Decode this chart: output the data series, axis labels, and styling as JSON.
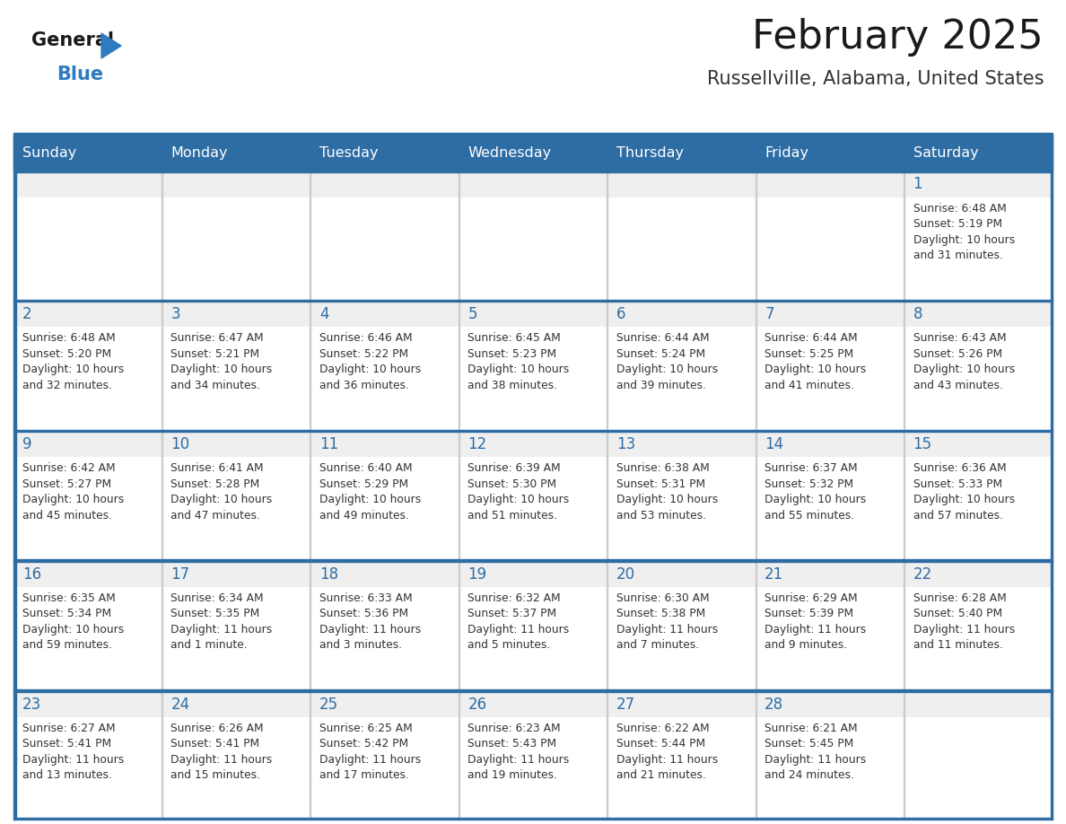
{
  "title": "February 2025",
  "subtitle": "Russellville, Alabama, United States",
  "header_bg": "#2E6DA4",
  "header_text_color": "#FFFFFF",
  "day_names": [
    "Sunday",
    "Monday",
    "Tuesday",
    "Wednesday",
    "Thursday",
    "Friday",
    "Saturday"
  ],
  "cell_bg_gray": "#EFEFEF",
  "cell_bg_white": "#FFFFFF",
  "grid_line_color": "#2E6DA4",
  "date_color": "#2E6DA4",
  "info_color": "#333333",
  "title_color": "#1a1a1a",
  "subtitle_color": "#333333",
  "logo_general_color": "#1a1a1a",
  "logo_blue_color": "#2E7BBF",
  "calendar": [
    [
      null,
      null,
      null,
      null,
      null,
      null,
      {
        "day": 1,
        "sunrise": "6:48 AM",
        "sunset": "5:19 PM",
        "daylight": "10 hours",
        "daylight2": "and 31 minutes."
      }
    ],
    [
      {
        "day": 2,
        "sunrise": "6:48 AM",
        "sunset": "5:20 PM",
        "daylight": "10 hours",
        "daylight2": "and 32 minutes."
      },
      {
        "day": 3,
        "sunrise": "6:47 AM",
        "sunset": "5:21 PM",
        "daylight": "10 hours",
        "daylight2": "and 34 minutes."
      },
      {
        "day": 4,
        "sunrise": "6:46 AM",
        "sunset": "5:22 PM",
        "daylight": "10 hours",
        "daylight2": "and 36 minutes."
      },
      {
        "day": 5,
        "sunrise": "6:45 AM",
        "sunset": "5:23 PM",
        "daylight": "10 hours",
        "daylight2": "and 38 minutes."
      },
      {
        "day": 6,
        "sunrise": "6:44 AM",
        "sunset": "5:24 PM",
        "daylight": "10 hours",
        "daylight2": "and 39 minutes."
      },
      {
        "day": 7,
        "sunrise": "6:44 AM",
        "sunset": "5:25 PM",
        "daylight": "10 hours",
        "daylight2": "and 41 minutes."
      },
      {
        "day": 8,
        "sunrise": "6:43 AM",
        "sunset": "5:26 PM",
        "daylight": "10 hours",
        "daylight2": "and 43 minutes."
      }
    ],
    [
      {
        "day": 9,
        "sunrise": "6:42 AM",
        "sunset": "5:27 PM",
        "daylight": "10 hours",
        "daylight2": "and 45 minutes."
      },
      {
        "day": 10,
        "sunrise": "6:41 AM",
        "sunset": "5:28 PM",
        "daylight": "10 hours",
        "daylight2": "and 47 minutes."
      },
      {
        "day": 11,
        "sunrise": "6:40 AM",
        "sunset": "5:29 PM",
        "daylight": "10 hours",
        "daylight2": "and 49 minutes."
      },
      {
        "day": 12,
        "sunrise": "6:39 AM",
        "sunset": "5:30 PM",
        "daylight": "10 hours",
        "daylight2": "and 51 minutes."
      },
      {
        "day": 13,
        "sunrise": "6:38 AM",
        "sunset": "5:31 PM",
        "daylight": "10 hours",
        "daylight2": "and 53 minutes."
      },
      {
        "day": 14,
        "sunrise": "6:37 AM",
        "sunset": "5:32 PM",
        "daylight": "10 hours",
        "daylight2": "and 55 minutes."
      },
      {
        "day": 15,
        "sunrise": "6:36 AM",
        "sunset": "5:33 PM",
        "daylight": "10 hours",
        "daylight2": "and 57 minutes."
      }
    ],
    [
      {
        "day": 16,
        "sunrise": "6:35 AM",
        "sunset": "5:34 PM",
        "daylight": "10 hours",
        "daylight2": "and 59 minutes."
      },
      {
        "day": 17,
        "sunrise": "6:34 AM",
        "sunset": "5:35 PM",
        "daylight": "11 hours",
        "daylight2": "and 1 minute."
      },
      {
        "day": 18,
        "sunrise": "6:33 AM",
        "sunset": "5:36 PM",
        "daylight": "11 hours",
        "daylight2": "and 3 minutes."
      },
      {
        "day": 19,
        "sunrise": "6:32 AM",
        "sunset": "5:37 PM",
        "daylight": "11 hours",
        "daylight2": "and 5 minutes."
      },
      {
        "day": 20,
        "sunrise": "6:30 AM",
        "sunset": "5:38 PM",
        "daylight": "11 hours",
        "daylight2": "and 7 minutes."
      },
      {
        "day": 21,
        "sunrise": "6:29 AM",
        "sunset": "5:39 PM",
        "daylight": "11 hours",
        "daylight2": "and 9 minutes."
      },
      {
        "day": 22,
        "sunrise": "6:28 AM",
        "sunset": "5:40 PM",
        "daylight": "11 hours",
        "daylight2": "and 11 minutes."
      }
    ],
    [
      {
        "day": 23,
        "sunrise": "6:27 AM",
        "sunset": "5:41 PM",
        "daylight": "11 hours",
        "daylight2": "and 13 minutes."
      },
      {
        "day": 24,
        "sunrise": "6:26 AM",
        "sunset": "5:41 PM",
        "daylight": "11 hours",
        "daylight2": "and 15 minutes."
      },
      {
        "day": 25,
        "sunrise": "6:25 AM",
        "sunset": "5:42 PM",
        "daylight": "11 hours",
        "daylight2": "and 17 minutes."
      },
      {
        "day": 26,
        "sunrise": "6:23 AM",
        "sunset": "5:43 PM",
        "daylight": "11 hours",
        "daylight2": "and 19 minutes."
      },
      {
        "day": 27,
        "sunrise": "6:22 AM",
        "sunset": "5:44 PM",
        "daylight": "11 hours",
        "daylight2": "and 21 minutes."
      },
      {
        "day": 28,
        "sunrise": "6:21 AM",
        "sunset": "5:45 PM",
        "daylight": "11 hours",
        "daylight2": "and 24 minutes."
      },
      null
    ]
  ]
}
